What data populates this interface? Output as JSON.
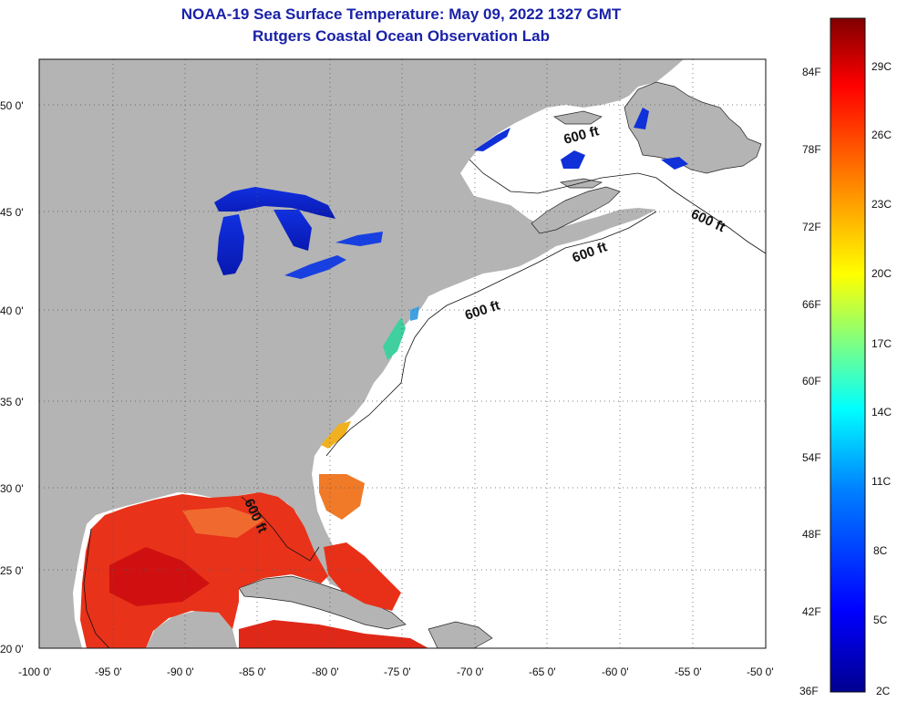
{
  "title": {
    "line1": "NOAA-19 Sea Surface Temperature:  May 09, 2022 1327 GMT",
    "line2": "Rutgers Coastal Ocean Observation Lab"
  },
  "map": {
    "lon_range": [
      -100,
      -50
    ],
    "lat_range": [
      20,
      52.5
    ],
    "lon_ticks": [
      -100,
      -95,
      -90,
      -85,
      -80,
      -75,
      -70,
      -65,
      -60,
      -55,
      -50
    ],
    "lon_labels": [
      "-100 0'",
      "-95 0'",
      "-90 0'",
      "-85 0'",
      "-80 0'",
      "-75 0'",
      "-70 0'",
      "-65 0'",
      "-60 0'",
      "-55 0'",
      "-50 0'"
    ],
    "lat_ticks": [
      20,
      25,
      30,
      35,
      40,
      45,
      50
    ],
    "lat_labels": [
      "20 0'",
      "25 0'",
      "30 0'",
      "35 0'",
      "40 0'",
      "45 0'",
      "50 0'"
    ],
    "grid": "dotted",
    "land_color": "#b4b4b4",
    "ocean_no_data_color": "#ffffff",
    "contour_labels": [
      "600 ft",
      "600 ft",
      "600 ft",
      "600 ft",
      "600 ft"
    ]
  },
  "colorbar": {
    "min": "36F",
    "min_c": "2C",
    "fahrenheit_labels": [
      "84F",
      "78F",
      "72F",
      "66F",
      "60F",
      "54F",
      "48F",
      "42F"
    ],
    "celsius_labels": [
      "29C",
      "26C",
      "23C",
      "20C",
      "17C",
      "14C",
      "11C",
      "8C",
      "5C"
    ],
    "colors": [
      "#00008f",
      "#0000ff",
      "#0080ff",
      "#00ffff",
      "#80ff80",
      "#ffff00",
      "#ff8000",
      "#ff0000",
      "#800000"
    ]
  }
}
